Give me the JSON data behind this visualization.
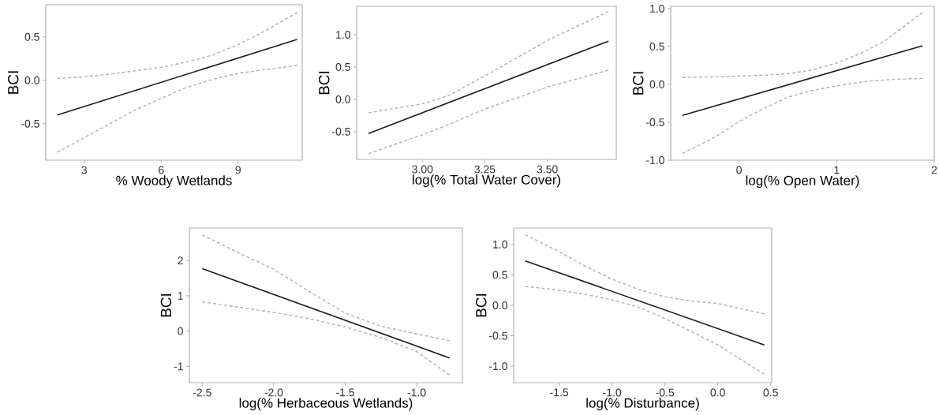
{
  "chart_data": [
    {
      "type": "line",
      "xlabel": "% Woody Wetlands",
      "ylabel": "BCI",
      "xlim": [
        1.5,
        11.5
      ],
      "ylim": [
        -0.92,
        0.87
      ],
      "xticks": [
        3,
        6,
        9
      ],
      "yticks": [
        {
          "value": -0.5,
          "label": "-0.5"
        },
        {
          "value": 0,
          "label": "0.0"
        },
        {
          "value": 0.5,
          "label": "0.5"
        }
      ],
      "series": [
        {
          "color": "#1a1a1a",
          "line_style": "solid",
          "x": [
            1.95,
            11.3
          ],
          "values": [
            -0.4,
            0.47
          ]
        },
        {
          "color": "#b0b0b0",
          "line_style": "dashed",
          "x": [
            1.95,
            3,
            4,
            5,
            6,
            7,
            8,
            9,
            10,
            11.3
          ],
          "values": [
            0.02,
            0.04,
            0.07,
            0.11,
            0.15,
            0.21,
            0.29,
            0.41,
            0.56,
            0.78
          ]
        },
        {
          "color": "#b0b0b0",
          "line_style": "dashed",
          "x": [
            1.95,
            3,
            4,
            5,
            6,
            7,
            8,
            9,
            10,
            11.3
          ],
          "values": [
            -0.83,
            -0.66,
            -0.5,
            -0.34,
            -0.21,
            -0.08,
            0.01,
            0.08,
            0.12,
            0.17
          ]
        }
      ]
    },
    {
      "type": "line",
      "xlabel": "log(% Total Water Cover)",
      "ylabel": "BCI",
      "xlim": [
        2.737,
        3.776
      ],
      "ylim": [
        -0.93,
        1.44
      ],
      "xticks": [
        {
          "value": 3,
          "label": "3.00"
        },
        3.25,
        {
          "value": 3.5,
          "label": "3.50"
        }
      ],
      "yticks": [
        -0.5,
        {
          "value": 0,
          "label": "0.0"
        },
        0.5,
        {
          "value": 1,
          "label": "1.0"
        }
      ],
      "series": [
        {
          "color": "#1a1a1a",
          "line_style": "solid",
          "x": [
            2.784,
            3.745
          ],
          "values": [
            -0.53,
            0.9
          ]
        },
        {
          "color": "#b0b0b0",
          "line_style": "dashed",
          "x": [
            2.784,
            3.0,
            3.1,
            3.25,
            3.4,
            3.5,
            3.745
          ],
          "values": [
            -0.21,
            -0.07,
            0.05,
            0.36,
            0.69,
            0.91,
            1.36
          ]
        },
        {
          "color": "#b0b0b0",
          "line_style": "dashed",
          "x": [
            2.784,
            3.0,
            3.1,
            3.25,
            3.4,
            3.5,
            3.745
          ],
          "values": [
            -0.84,
            -0.55,
            -0.4,
            -0.15,
            0.05,
            0.19,
            0.45
          ]
        }
      ]
    },
    {
      "type": "line",
      "xlabel": "log(% Open Water)",
      "ylabel": "BCI",
      "xlim": [
        -0.7,
        2.0
      ],
      "ylim": [
        -1.0,
        1.03
      ],
      "xticks": [
        0,
        1,
        2
      ],
      "yticks": [
        {
          "value": -1,
          "label": "-1.0"
        },
        -0.5,
        {
          "value": 0,
          "label": "0.0"
        },
        0.5,
        {
          "value": 1,
          "label": "1.0"
        }
      ],
      "series": [
        {
          "color": "#1a1a1a",
          "line_style": "solid",
          "x": [
            -0.58,
            1.88
          ],
          "values": [
            -0.41,
            0.51
          ]
        },
        {
          "color": "#b0b0b0",
          "line_style": "dashed",
          "x": [
            -0.58,
            -0.25,
            0,
            0.25,
            0.5,
            0.75,
            1.0,
            1.25,
            1.5,
            1.88
          ],
          "values": [
            0.09,
            0.1,
            0.11,
            0.12,
            0.14,
            0.19,
            0.28,
            0.41,
            0.58,
            0.95
          ]
        },
        {
          "color": "#b0b0b0",
          "line_style": "dashed",
          "x": [
            -0.58,
            -0.25,
            0,
            0.25,
            0.5,
            0.75,
            1.0,
            1.25,
            1.5,
            1.88
          ],
          "values": [
            -0.91,
            -0.7,
            -0.49,
            -0.32,
            -0.17,
            -0.08,
            -0.02,
            0.03,
            0.06,
            0.08
          ]
        }
      ]
    },
    {
      "type": "line",
      "xlabel": "log(% Herbaceous Wetlands)",
      "ylabel": "BCI",
      "xlim": [
        -2.59,
        -0.68
      ],
      "ylim": [
        -1.46,
        2.92
      ],
      "xticks": [
        -2.5,
        {
          "value": -2,
          "label": "-2.0"
        },
        -1.5,
        {
          "value": -1,
          "label": "-1.0"
        }
      ],
      "yticks": [
        -1,
        0,
        1,
        2
      ],
      "series": [
        {
          "color": "#1a1a1a",
          "line_style": "solid",
          "x": [
            -2.5,
            -0.77
          ],
          "values": [
            1.77,
            -0.76
          ]
        },
        {
          "color": "#b0b0b0",
          "line_style": "dashed",
          "x": [
            -2.5,
            -2.25,
            -2.0,
            -1.75,
            -1.5,
            -1.25,
            -1.0,
            -0.77
          ],
          "values": [
            2.72,
            2.23,
            1.75,
            1.12,
            0.51,
            0.14,
            -0.08,
            -0.27
          ]
        },
        {
          "color": "#b0b0b0",
          "line_style": "dashed",
          "x": [
            -2.5,
            -2.25,
            -2.0,
            -1.75,
            -1.5,
            -1.25,
            -1.0,
            -0.77
          ],
          "values": [
            0.83,
            0.68,
            0.53,
            0.35,
            0.12,
            -0.18,
            -0.58,
            -1.24
          ]
        }
      ]
    },
    {
      "type": "line",
      "xlabel": "log(% Disturbance)",
      "ylabel": "BCI",
      "xlim": [
        -1.93,
        0.51
      ],
      "ylim": [
        -1.27,
        1.27
      ],
      "xticks": [
        -1.5,
        {
          "value": -1,
          "label": "-1.0"
        },
        -0.5,
        {
          "value": 0,
          "label": "0.0"
        },
        0.5
      ],
      "yticks": [
        {
          "value": -1,
          "label": "-1.0"
        },
        -0.5,
        {
          "value": 0,
          "label": "0.0"
        },
        0.5,
        {
          "value": 1,
          "label": "1.0"
        }
      ],
      "series": [
        {
          "color": "#1a1a1a",
          "line_style": "solid",
          "x": [
            -1.82,
            0.44
          ],
          "values": [
            0.73,
            -0.65
          ]
        },
        {
          "color": "#b0b0b0",
          "line_style": "dashed",
          "x": [
            -1.82,
            -1.5,
            -1.25,
            -1.0,
            -0.75,
            -0.5,
            -0.25,
            0,
            0.44
          ],
          "values": [
            1.16,
            0.88,
            0.64,
            0.43,
            0.26,
            0.14,
            0.07,
            0.03,
            -0.14
          ]
        },
        {
          "color": "#b0b0b0",
          "line_style": "dashed",
          "x": [
            -1.82,
            -1.5,
            -1.25,
            -1.0,
            -0.75,
            -0.5,
            -0.25,
            0,
            0.44
          ],
          "values": [
            0.31,
            0.25,
            0.18,
            0.09,
            -0.03,
            -0.22,
            -0.43,
            -0.65,
            -1.13
          ]
        }
      ]
    }
  ]
}
